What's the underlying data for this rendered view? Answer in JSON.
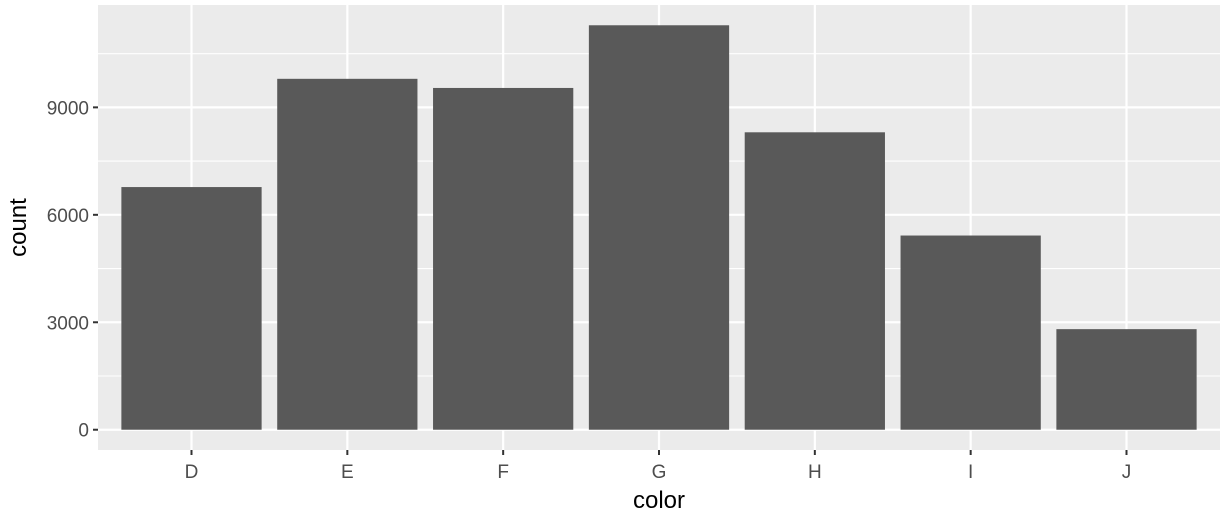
{
  "chart_data": {
    "type": "bar",
    "title": "",
    "xlabel": "color",
    "ylabel": "count",
    "categories": [
      "D",
      "E",
      "F",
      "G",
      "H",
      "I",
      "J"
    ],
    "values": [
      6775,
      9797,
      9542,
      11292,
      8304,
      5422,
      2808
    ],
    "ylim": [
      -566,
      11858
    ],
    "yticks": [
      0,
      3000,
      6000,
      9000
    ],
    "ytick_labels": [
      "0",
      "3000",
      "6000",
      "9000"
    ],
    "bar_color": "#595959",
    "panel_background": "#ebebeb",
    "grid": true,
    "legend": "none"
  }
}
